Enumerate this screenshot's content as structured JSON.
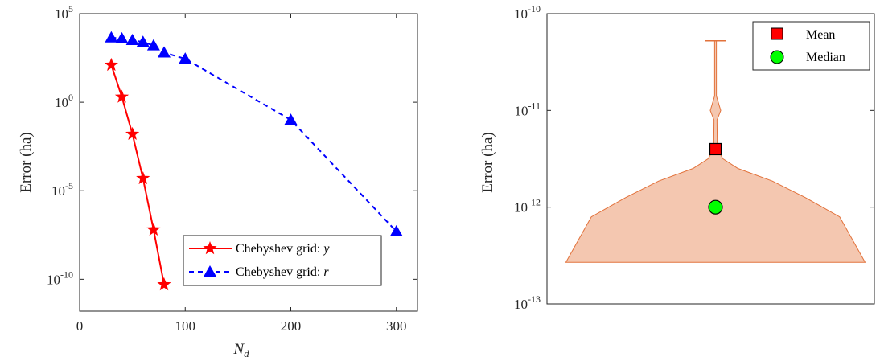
{
  "chart_data": [
    {
      "type": "line",
      "xlabel": "N",
      "xlabel_sub": "d",
      "ylabel": "Error (ha)",
      "yscale": "log",
      "xlim": [
        0,
        320
      ],
      "ylim_exp": [
        -11.8,
        5
      ],
      "x_ticks": [
        "0",
        "100",
        "200",
        "300"
      ],
      "y_ticks": [
        {
          "base": "10",
          "exp": "5"
        },
        {
          "base": "10",
          "exp": "0"
        },
        {
          "base": "10",
          "exp": "-5"
        },
        {
          "base": "10",
          "exp": "-10"
        }
      ],
      "legend_position": "bottom-right",
      "series": [
        {
          "name": "Chebyshev grid: ",
          "var": "y",
          "color": "#ff0000",
          "marker": "star",
          "line": "solid",
          "x": [
            30,
            40,
            50,
            60,
            70,
            80
          ],
          "y_exp": [
            2.1,
            0.3,
            -1.8,
            -4.3,
            -7.2,
            -10.3
          ]
        },
        {
          "name": "Chebyshev grid: ",
          "var": "r",
          "color": "#0000ff",
          "marker": "triangle",
          "line": "dashed",
          "x": [
            30,
            40,
            50,
            60,
            70,
            80,
            100,
            200,
            300
          ],
          "y_exp": [
            3.65,
            3.6,
            3.5,
            3.4,
            3.2,
            2.8,
            2.45,
            -1.0,
            -7.3
          ]
        }
      ]
    },
    {
      "type": "violin",
      "ylabel": "Error (ha)",
      "yscale": "log",
      "ylim_exp": [
        -13,
        -10
      ],
      "y_ticks": [
        {
          "base": "10",
          "exp": "-10"
        },
        {
          "base": "10",
          "exp": "-11"
        },
        {
          "base": "10",
          "exp": "-12"
        },
        {
          "base": "10",
          "exp": "-13"
        }
      ],
      "fill_color": "#f4c7b0",
      "edge_color": "#e2723b",
      "profile": [
        {
          "y_exp": -12.57,
          "w": 1.0
        },
        {
          "y_exp": -12.1,
          "w": 0.83
        },
        {
          "y_exp": -11.9,
          "w": 0.6
        },
        {
          "y_exp": -11.73,
          "w": 0.38
        },
        {
          "y_exp": -11.6,
          "w": 0.15
        },
        {
          "y_exp": -11.5,
          "w": 0.05
        },
        {
          "y_exp": -11.4,
          "w": 0.012
        },
        {
          "y_exp": -11.1,
          "w": 0.01
        },
        {
          "y_exp": -11.0,
          "w": 0.035
        },
        {
          "y_exp": -10.95,
          "w": 0.025
        },
        {
          "y_exp": -10.85,
          "w": 0.006
        },
        {
          "y_exp": -10.4,
          "w": 0.006
        },
        {
          "y_exp": -10.28,
          "w": 0.006
        }
      ],
      "top_cap_exp": -10.28,
      "top_cap_width": 0.07,
      "mean_exp": -11.4,
      "median_exp": -12.0,
      "legend_position": "top-right",
      "legend": [
        {
          "label": "Mean",
          "marker": "square",
          "color": "#ff0000"
        },
        {
          "label": "Median",
          "marker": "circle",
          "color": "#00ff00"
        }
      ]
    }
  ]
}
